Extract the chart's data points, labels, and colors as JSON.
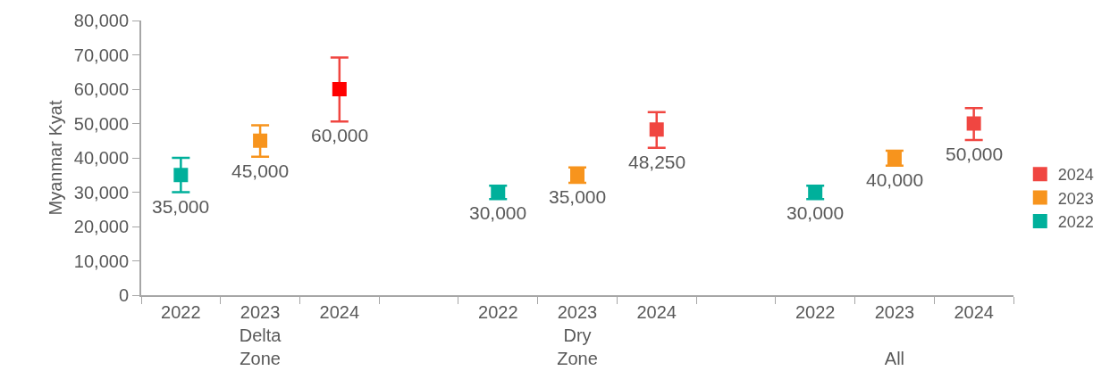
{
  "chart_data": {
    "type": "scatter",
    "ylabel": "Myanmar Kyat",
    "marker": "square",
    "categories": [
      "2022",
      "2023\nDelta\nZone",
      "2024",
      null,
      "2022",
      "2023\nDry\nZone",
      "2024",
      null,
      "2022",
      "2023\n\nAll",
      "2024"
    ],
    "series": [
      {
        "name": "2022",
        "color": "#00b09b",
        "values": [
          35000,
          null,
          null,
          null,
          30000,
          null,
          null,
          null,
          30000,
          null,
          null
        ],
        "errors": [
          [
            30000,
            40000
          ],
          null,
          null,
          null,
          [
            28000,
            31900
          ],
          null,
          null,
          null,
          [
            28000,
            31900
          ],
          null,
          null
        ],
        "value_labels": [
          "35,000",
          null,
          null,
          null,
          "30,000",
          null,
          null,
          null,
          "30,000",
          null,
          null
        ]
      },
      {
        "name": "2023",
        "color": "#f7941d",
        "values": [
          null,
          45000,
          null,
          null,
          null,
          35000,
          null,
          null,
          null,
          40000,
          null
        ],
        "errors": [
          null,
          [
            40300,
            49500
          ],
          null,
          null,
          null,
          [
            32700,
            37200
          ],
          null,
          null,
          null,
          [
            37700,
            42100
          ],
          null
        ],
        "value_labels": [
          null,
          "45,000",
          null,
          null,
          null,
          "35,000",
          null,
          null,
          null,
          "40,000",
          null
        ]
      },
      {
        "name": "2024",
        "color": "#f04641",
        "colors": [
          "#f04641",
          "#f04641",
          "#ff0000",
          "#f04641",
          "#f04641",
          "#f04641",
          "#f04641",
          "#f04641",
          "#f04641",
          "#f04641",
          "#f04641"
        ],
        "values": [
          null,
          null,
          60000,
          null,
          null,
          null,
          48250,
          null,
          null,
          null,
          50000
        ],
        "errors": [
          null,
          null,
          [
            50600,
            69200
          ],
          null,
          null,
          null,
          [
            42900,
            53300
          ],
          null,
          null,
          null,
          [
            45200,
            54500
          ]
        ],
        "value_labels": [
          null,
          null,
          "60,000",
          null,
          null,
          null,
          "48,250",
          null,
          null,
          null,
          "50,000"
        ]
      }
    ],
    "ylim": [
      0,
      80000
    ],
    "yticks": [
      {
        "value": 0,
        "label": "0"
      },
      {
        "value": 10000,
        "label": "10,000"
      },
      {
        "value": 20000,
        "label": "20,000"
      },
      {
        "value": 30000,
        "label": "30,000"
      },
      {
        "value": 40000,
        "label": "40,000"
      },
      {
        "value": 50000,
        "label": "50,000"
      },
      {
        "value": 60000,
        "label": "60,000"
      },
      {
        "value": 70000,
        "label": "70,000"
      },
      {
        "value": 80000,
        "label": "80,000"
      }
    ],
    "legend": "right"
  }
}
